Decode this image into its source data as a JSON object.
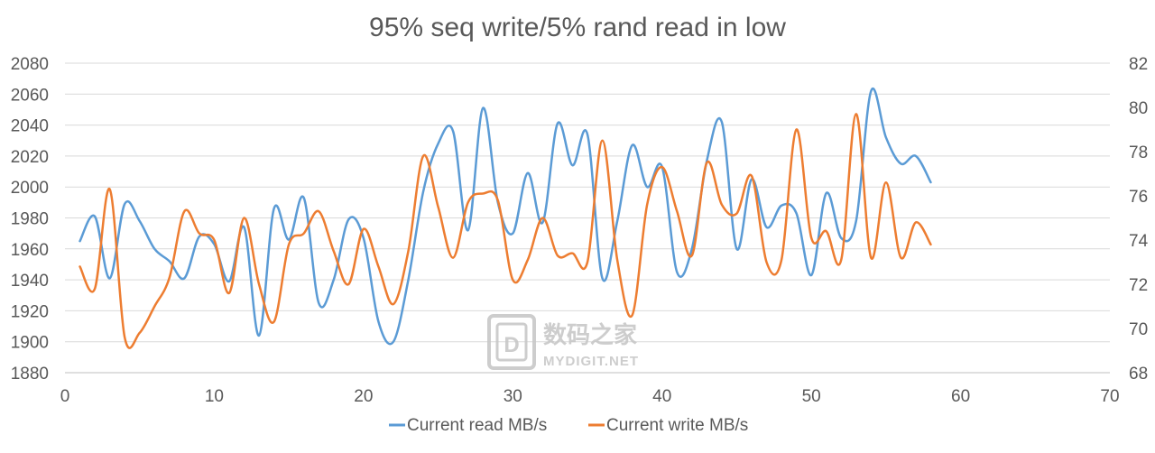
{
  "chart_data": {
    "type": "line",
    "title": "95% seq write/5% rand read in low",
    "xlabel": "",
    "ylabel": "",
    "xlim": [
      0,
      70
    ],
    "x_ticks": [
      "0",
      "10",
      "20",
      "30",
      "40",
      "50",
      "60",
      "70"
    ],
    "ylim_left": [
      1880,
      2080
    ],
    "y_ticks_left": [
      "1880",
      "1900",
      "1920",
      "1940",
      "1960",
      "1980",
      "2000",
      "2020",
      "2040",
      "2060",
      "2080"
    ],
    "ylim_right": [
      68,
      82
    ],
    "y_ticks_right": [
      "68",
      "70",
      "72",
      "74",
      "76",
      "78",
      "80",
      "82"
    ],
    "grid": true,
    "legend_position": "bottom",
    "x": [
      1,
      2,
      3,
      4,
      5,
      6,
      7,
      8,
      9,
      10,
      11,
      12,
      13,
      14,
      15,
      16,
      17,
      18,
      19,
      20,
      21,
      22,
      23,
      24,
      25,
      26,
      27,
      28,
      29,
      30,
      31,
      32,
      33,
      34,
      35,
      36,
      37,
      38,
      39,
      40,
      41,
      42,
      43,
      44,
      45,
      46,
      47,
      48,
      49,
      50,
      51,
      52,
      53,
      54,
      55,
      56,
      57,
      58
    ],
    "series": [
      {
        "name": "Current read MB/s",
        "axis": "left",
        "color": "#5b9bd5",
        "values": [
          1965,
          1981,
          1941,
          1989,
          1978,
          1960,
          1952,
          1941,
          1968,
          1963,
          1939,
          1974,
          1904,
          1986,
          1966,
          1993,
          1925,
          1940,
          1979,
          1967,
          1913,
          1900,
          1940,
          1997,
          2028,
          2036,
          1972,
          2051,
          1990,
          1970,
          2009,
          1977,
          2041,
          2014,
          2034,
          1941,
          1978,
          2027,
          2000,
          2013,
          1945,
          1960,
          2017,
          2042,
          1960,
          2005,
          1974,
          1988,
          1983,
          1943,
          1996,
          1967,
          1978,
          2062,
          2032,
          2015,
          2020,
          2003
        ]
      },
      {
        "name": "Current write MB/s",
        "axis": "right",
        "color": "#ed7d31",
        "values": [
          72.8,
          71.8,
          76.3,
          69.6,
          69.8,
          71.0,
          72.3,
          75.3,
          74.3,
          74.0,
          71.6,
          75.0,
          72.0,
          70.3,
          73.8,
          74.3,
          75.3,
          73.5,
          72.0,
          74.5,
          72.8,
          71.1,
          73.5,
          77.8,
          75.5,
          73.2,
          75.7,
          76.1,
          75.8,
          72.2,
          73.1,
          75.0,
          73.3,
          73.4,
          73.0,
          78.5,
          73.1,
          70.6,
          75.6,
          77.3,
          75.3,
          73.3,
          77.5,
          75.6,
          75.2,
          76.9,
          73.0,
          73.1,
          79.0,
          74.1,
          74.4,
          73.1,
          79.7,
          73.2,
          76.6,
          73.2,
          74.8,
          73.8
        ]
      }
    ],
    "watermark": {
      "cn_text": "数码之家",
      "en_text": "MYDIGIT.NET"
    }
  }
}
